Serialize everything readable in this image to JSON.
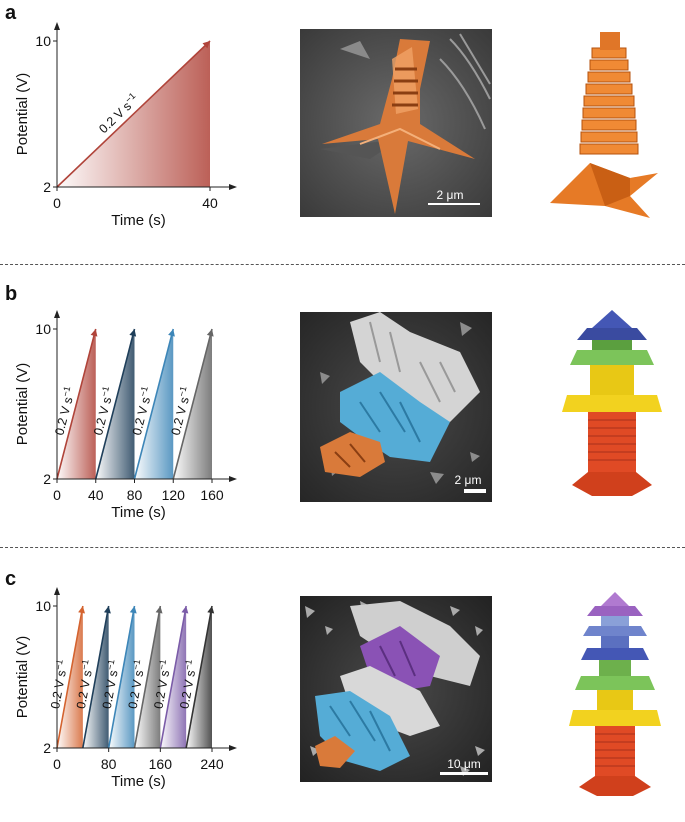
{
  "panels": [
    {
      "label": "a",
      "ylabel": "Potential (V)",
      "xlabel": "Time (s)",
      "yticks": [
        "10",
        "2"
      ],
      "xticks": [
        "0",
        "40"
      ],
      "rate_label": "0.2 V s",
      "rate_exp": "−1",
      "scale_bar": "2 μm"
    },
    {
      "label": "b",
      "ylabel": "Potential (V)",
      "xlabel": "Time (s)",
      "yticks": [
        "10",
        "2"
      ],
      "xticks": [
        "0",
        "40",
        "80",
        "120",
        "160"
      ],
      "rate_label": "0.2 V s",
      "rate_exp": "−1",
      "scale_bar": "2 μm"
    },
    {
      "label": "c",
      "ylabel": "Potential (V)",
      "xlabel": "Time (s)",
      "yticks": [
        "10",
        "2"
      ],
      "xticks": [
        "0",
        "80",
        "160",
        "240"
      ],
      "rate_label": "0.2 V s",
      "rate_exp": "−1",
      "scale_bar": "10 μm"
    }
  ],
  "chart_data": [
    {
      "type": "line",
      "title": "",
      "xlabel": "Time (s)",
      "ylabel": "Potential (V)",
      "xlim": [
        0,
        40
      ],
      "ylim": [
        2,
        10
      ],
      "series": [
        {
          "x": [
            0,
            40
          ],
          "y": [
            2,
            10
          ],
          "color": "#b0443a"
        }
      ]
    },
    {
      "type": "line",
      "title": "",
      "xlabel": "Time (s)",
      "ylabel": "Potential (V)",
      "xlim": [
        0,
        160
      ],
      "ylim": [
        2,
        10
      ],
      "series": [
        {
          "x": [
            0,
            40
          ],
          "y": [
            2,
            10
          ],
          "color": "#b0443a"
        },
        {
          "x": [
            40,
            80
          ],
          "y": [
            2,
            10
          ],
          "color": "#1f3f5a"
        },
        {
          "x": [
            80,
            120
          ],
          "y": [
            2,
            10
          ],
          "color": "#3d86b8"
        },
        {
          "x": [
            120,
            160
          ],
          "y": [
            2,
            10
          ],
          "color": "#666666"
        }
      ]
    },
    {
      "type": "line",
      "title": "",
      "xlabel": "Time (s)",
      "ylabel": "Potential (V)",
      "xlim": [
        0,
        240
      ],
      "ylim": [
        2,
        10
      ],
      "series": [
        {
          "x": [
            0,
            40
          ],
          "y": [
            2,
            10
          ],
          "color": "#d4632f"
        },
        {
          "x": [
            40,
            80
          ],
          "y": [
            2,
            10
          ],
          "color": "#1f3f5a"
        },
        {
          "x": [
            80,
            120
          ],
          "y": [
            2,
            10
          ],
          "color": "#3d86b8"
        },
        {
          "x": [
            120,
            160
          ],
          "y": [
            2,
            10
          ],
          "color": "#666666"
        },
        {
          "x": [
            160,
            200
          ],
          "y": [
            2,
            10
          ],
          "color": "#7b5ca8"
        },
        {
          "x": [
            200,
            240
          ],
          "y": [
            2,
            10
          ],
          "color": "#333333"
        }
      ]
    }
  ],
  "colors": {
    "copper": "#d97a3a",
    "blue": "#4aa3cf",
    "purple": "#8a52b5",
    "green": "#7cc45a",
    "yellow": "#f2d21f",
    "red": "#e04a25",
    "navy": "#4457b5"
  },
  "icons": {
    "sem_a": "sem-micrograph-copper-spire",
    "model_a": "orange-stacked-crystal-model",
    "sem_b": "sem-micrograph-multicolor-crystal",
    "model_b": "four-color-stacked-crystal-model",
    "sem_c": "sem-micrograph-six-segment-crystal",
    "model_c": "six-color-stacked-crystal-model"
  }
}
